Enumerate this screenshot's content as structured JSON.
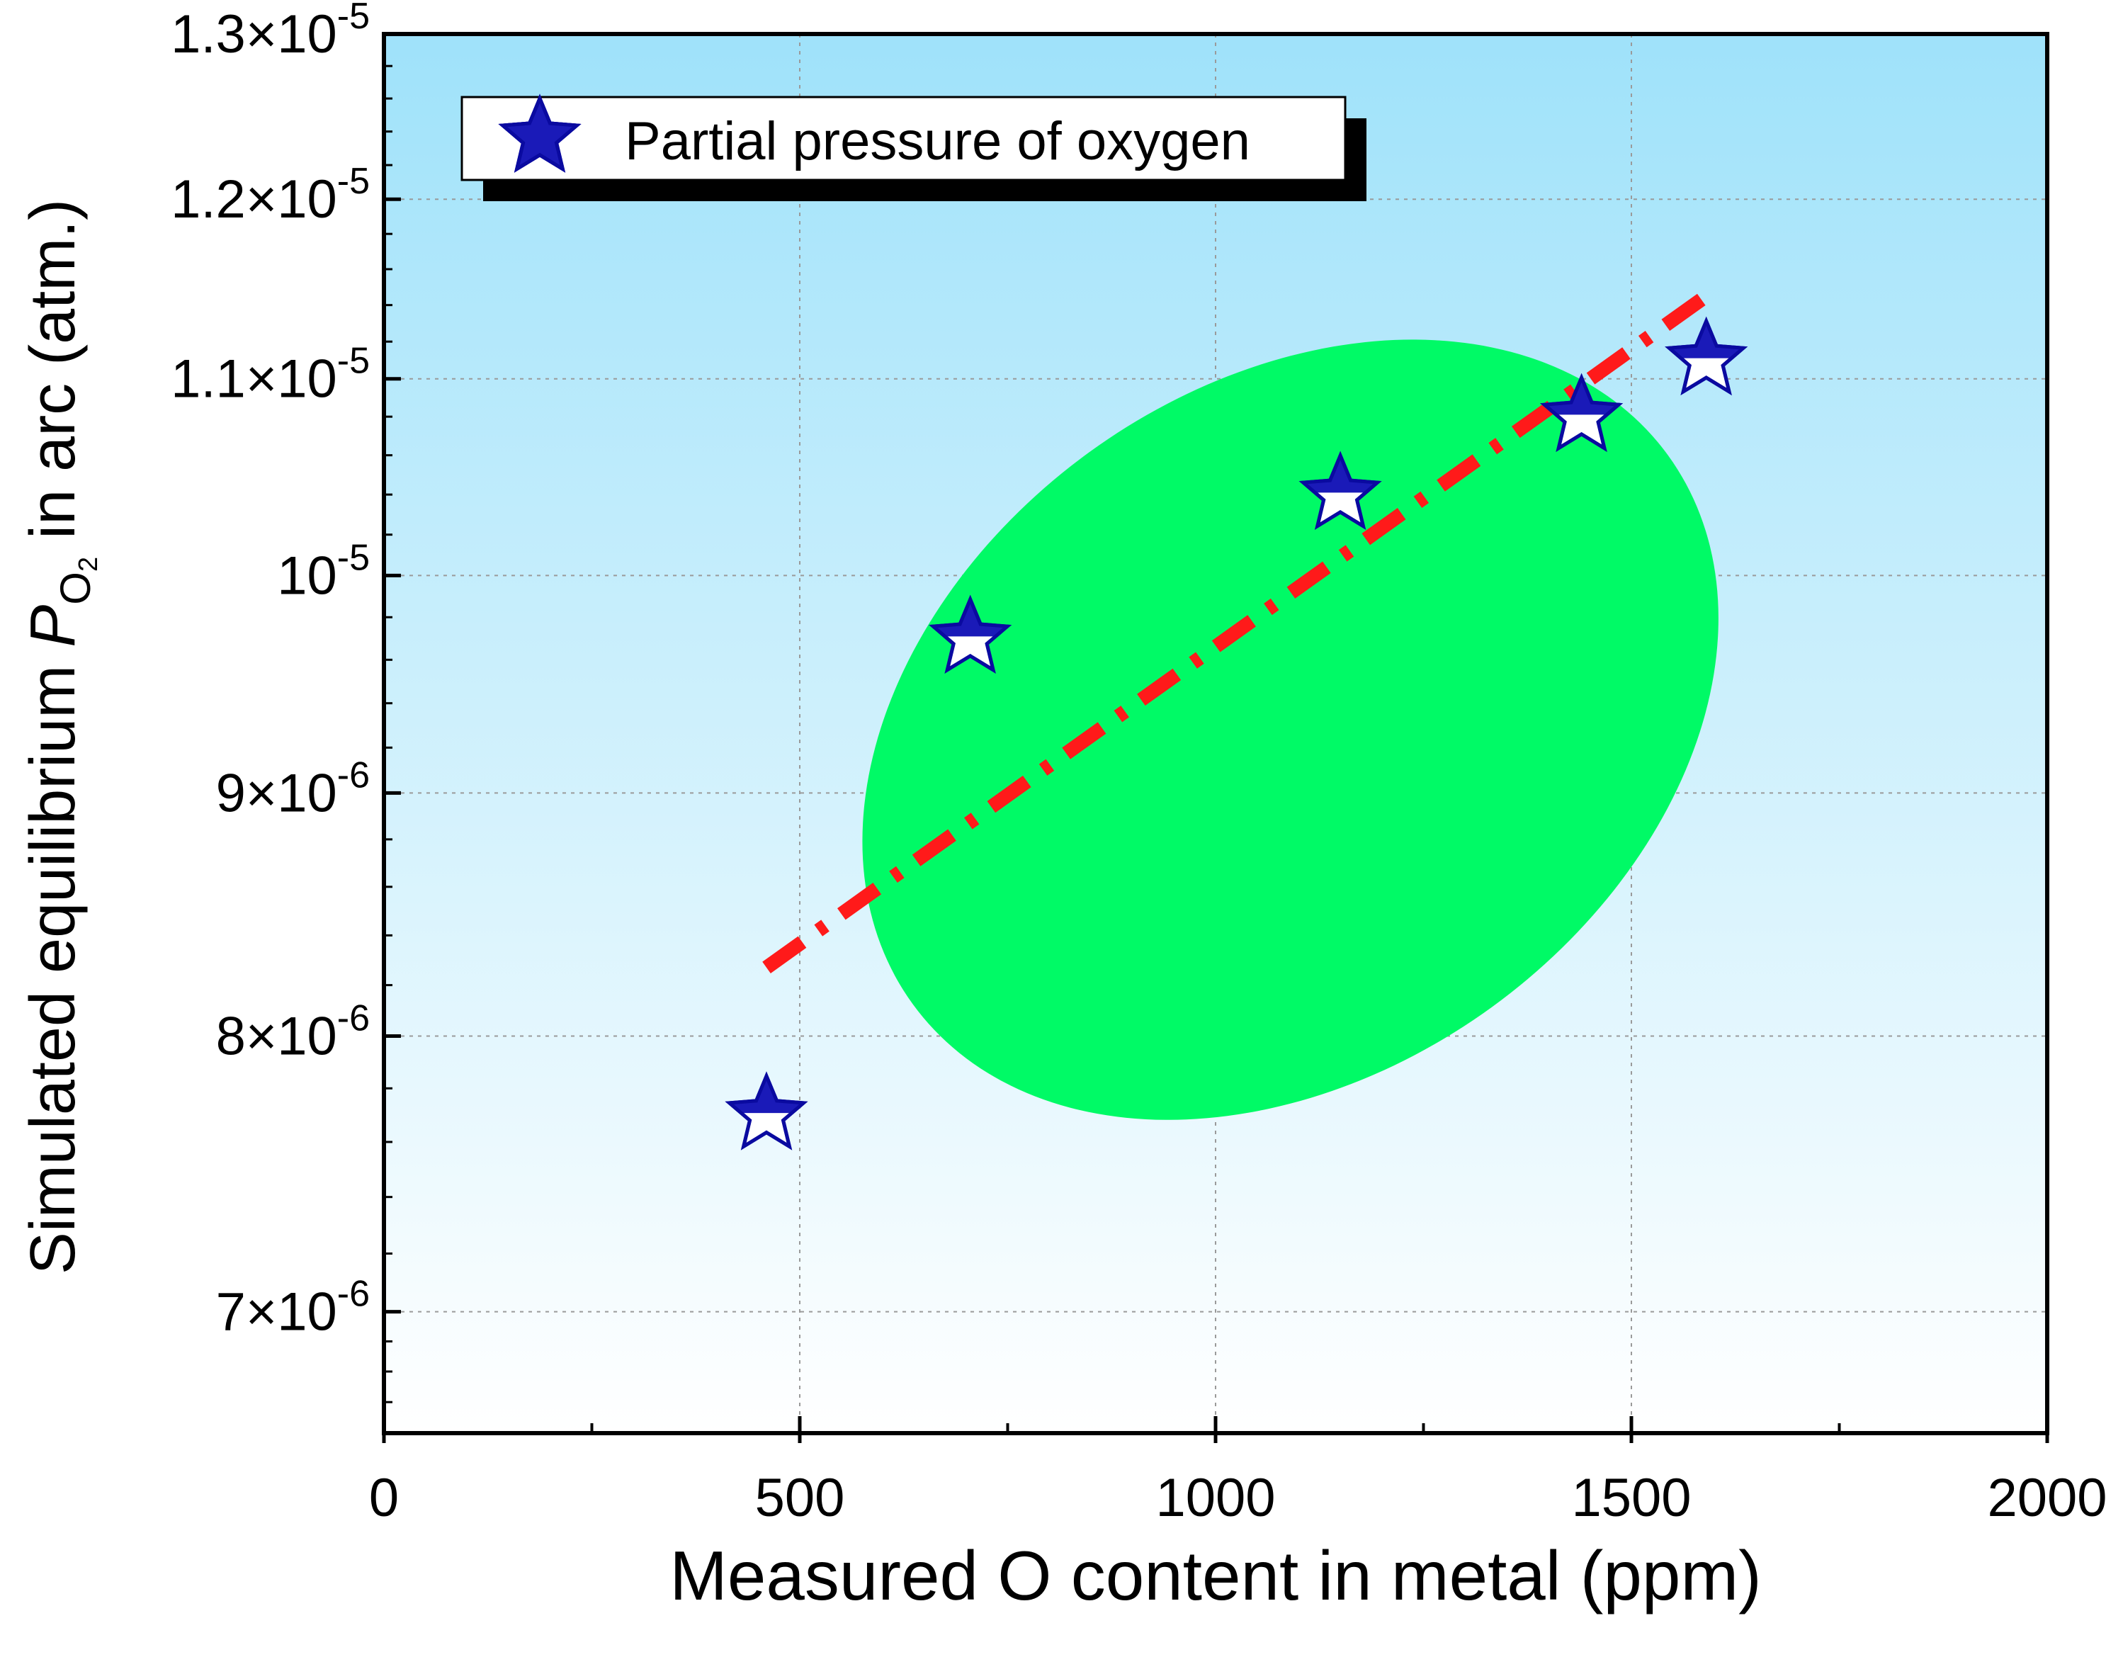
{
  "chart_data": {
    "type": "scatter",
    "x_scale": "linear",
    "y_scale": "log",
    "xlabel": "Measured O content in metal (ppm)",
    "ylabel": {
      "prefix": "Simulated equilibrium ",
      "symbol": "P",
      "subscript_base": "O",
      "subscript_index": "2",
      "suffix": " in arc (atm.)"
    },
    "xlim": [
      0,
      2000
    ],
    "ylim": [
      6.6e-06,
      1.3e-05
    ],
    "x_ticks": [
      {
        "value": 0,
        "label": "0"
      },
      {
        "value": 500,
        "label": "500"
      },
      {
        "value": 1000,
        "label": "1000"
      },
      {
        "value": 1500,
        "label": "1500"
      },
      {
        "value": 2000,
        "label": "2000"
      }
    ],
    "x_minor_ticks": [
      250,
      750,
      1250,
      1750
    ],
    "y_ticks": [
      {
        "value": 7e-06,
        "mantissa": "7",
        "exponent": "-6"
      },
      {
        "value": 8e-06,
        "mantissa": "8",
        "exponent": "-6"
      },
      {
        "value": 9e-06,
        "mantissa": "9",
        "exponent": "-6"
      },
      {
        "value": 1e-05,
        "mantissa": "",
        "exponent": "-5"
      },
      {
        "value": 1.1e-05,
        "mantissa": "1.1",
        "exponent": "-5"
      },
      {
        "value": 1.2e-05,
        "mantissa": "1.2",
        "exponent": "-5"
      },
      {
        "value": 1.3e-05,
        "mantissa": "1.3",
        "exponent": "-5"
      }
    ],
    "grid": true,
    "legend": {
      "position": "top-left",
      "entries": [
        "Partial pressure of oxygen"
      ]
    },
    "series": [
      {
        "name": "Partial pressure of oxygen",
        "marker": "star",
        "points": [
          {
            "x": 460,
            "y": 7.7e-06
          },
          {
            "x": 705,
            "y": 9.7e-06
          },
          {
            "x": 1150,
            "y": 1.04e-05
          },
          {
            "x": 1440,
            "y": 1.08e-05
          },
          {
            "x": 1590,
            "y": 1.11e-05
          }
        ]
      }
    ],
    "trendline": {
      "name": "fit",
      "style": "dash-dot",
      "x": [
        460,
        1590
      ],
      "y": [
        8.27e-06,
        1.145e-05
      ]
    },
    "highlight_region": {
      "shape": "ellipse",
      "center": {
        "x": 1090,
        "y": 9.28e-06
      },
      "semi_axis_x": 540,
      "semi_axis_y_fraction": 0.245,
      "rotation_deg": -36
    }
  },
  "colors": {
    "background_top": "#9fe2fa",
    "background_bottom": "#ffffff",
    "ellipse": "#00fa66",
    "star_fill": "#1a1ab8",
    "star_edge": "#0a0aa0",
    "trend": "#ff1a1a",
    "grid": "#9a9a9a",
    "axis": "#000000"
  }
}
